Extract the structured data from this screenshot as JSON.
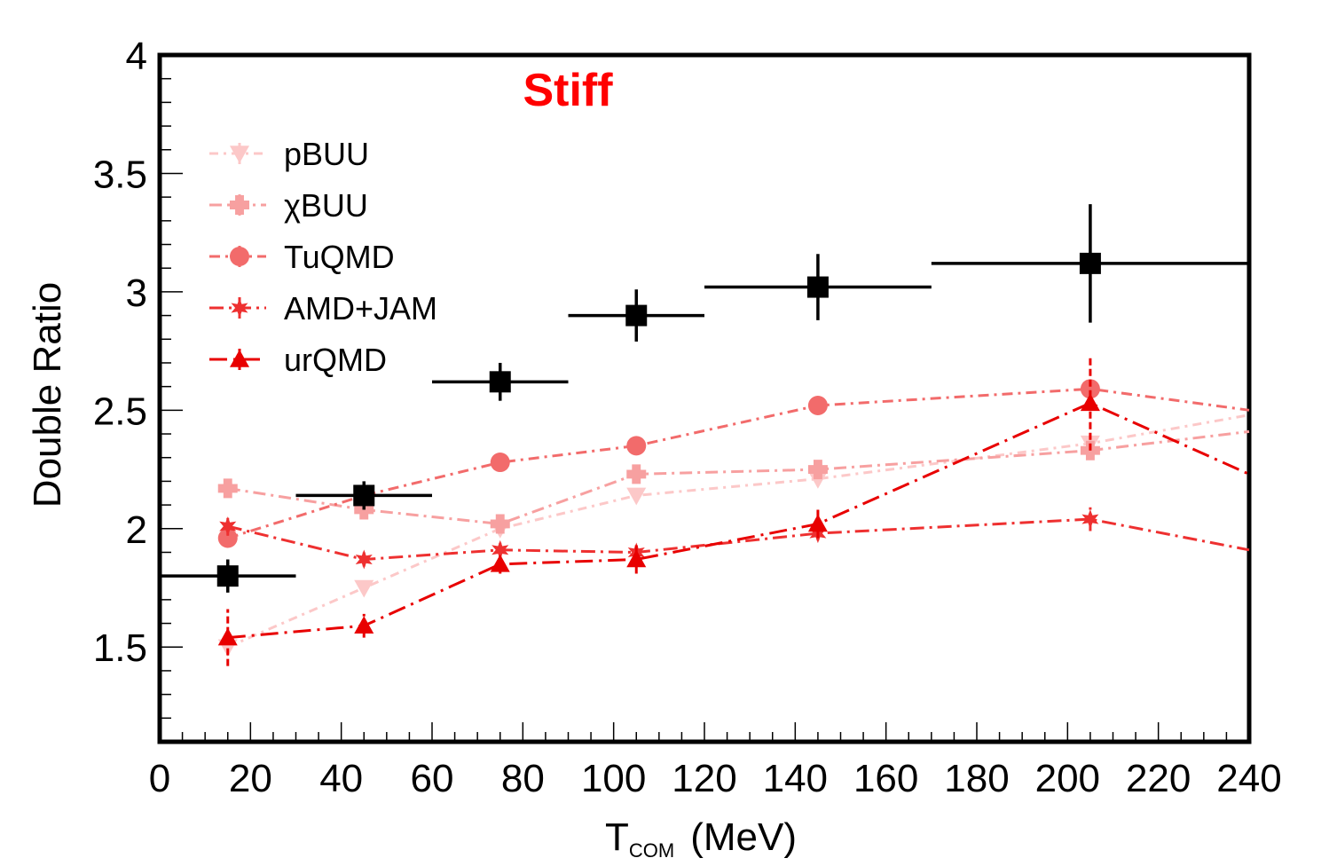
{
  "chart_data": {
    "type": "scatter",
    "annotation": "Stiff",
    "annotation_color": "#ff0000",
    "xlabel_main": "T",
    "xlabel_sub": "COM",
    "xlabel_unit": "(MeV)",
    "ylabel": "Double Ratio",
    "xlim": [
      0,
      240
    ],
    "ylim": [
      1.1,
      4.0
    ],
    "xticks": [
      0,
      20,
      40,
      60,
      80,
      100,
      120,
      140,
      160,
      180,
      200,
      220,
      240
    ],
    "xtick_labels": [
      "0",
      "20",
      "40",
      "60",
      "80",
      "100",
      "120",
      "140",
      "160",
      "180",
      "200",
      "220",
      "240"
    ],
    "yticks": [
      1.5,
      2,
      2.5,
      3,
      3.5,
      4
    ],
    "ytick_labels": [
      "1.5",
      "2",
      "2.5",
      "3",
      "3.5",
      "4"
    ],
    "grid": false,
    "legend_position": "top-left",
    "data": {
      "name": "",
      "color": "#000000",
      "marker": "square",
      "points": [
        {
          "x": 15,
          "y": 1.8,
          "xerr": 15,
          "yerr": 0.07
        },
        {
          "x": 45,
          "y": 2.14,
          "xerr": 15,
          "yerr": 0.06
        },
        {
          "x": 75,
          "y": 2.62,
          "xerr": 15,
          "yerr": 0.08
        },
        {
          "x": 105,
          "y": 2.9,
          "xerr": 15,
          "yerr": 0.11
        },
        {
          "x": 145,
          "y": 3.02,
          "xerr": 25,
          "yerr": 0.14
        },
        {
          "x": 205,
          "y": 3.12,
          "xerr": 35,
          "yerr": 0.25
        }
      ]
    },
    "series": [
      {
        "name": "pBUU",
        "color": "#fcc8c8",
        "marker": "triangle-down",
        "dash": "10,6,3,6",
        "x": [
          15,
          45,
          75,
          105,
          145,
          205,
          240
        ],
        "y": [
          1.5,
          1.75,
          2.0,
          2.14,
          2.21,
          2.36,
          2.48
        ]
      },
      {
        "name": "χBUU",
        "color": "#f7a0a0",
        "marker": "plus",
        "dash": "14,6,3,6",
        "x": [
          15,
          45,
          75,
          105,
          145,
          205,
          240
        ],
        "y": [
          2.17,
          2.08,
          2.02,
          2.23,
          2.25,
          2.33,
          2.41
        ]
      },
      {
        "name": "TuQMD",
        "color": "#f26b6b",
        "marker": "circle",
        "dash": "12,6,3,6",
        "x": [
          15,
          45,
          75,
          105,
          145,
          205,
          240
        ],
        "y": [
          1.96,
          2.14,
          2.28,
          2.35,
          2.52,
          2.59,
          2.5
        ]
      },
      {
        "name": "AMD+JAM",
        "color": "#ee3030",
        "marker": "star",
        "dash": "16,6,3,6",
        "x": [
          15,
          45,
          75,
          105,
          145,
          205,
          240
        ],
        "y": [
          2.01,
          1.87,
          1.91,
          1.9,
          1.98,
          2.04,
          1.91
        ],
        "yerr": [
          0.04,
          0.03,
          0.03,
          0.03,
          0.03,
          0.05,
          0
        ]
      },
      {
        "name": "urQMD",
        "color": "#e80000",
        "marker": "triangle-up",
        "dash": "20,7,3,7",
        "x": [
          15,
          45,
          75,
          105,
          145,
          205,
          240
        ],
        "y": [
          1.54,
          1.59,
          1.85,
          1.87,
          2.02,
          2.53,
          2.23
        ],
        "yerr": [
          0.12,
          0.05,
          0.04,
          0.06,
          0.06,
          0.2,
          0
        ]
      }
    ]
  }
}
